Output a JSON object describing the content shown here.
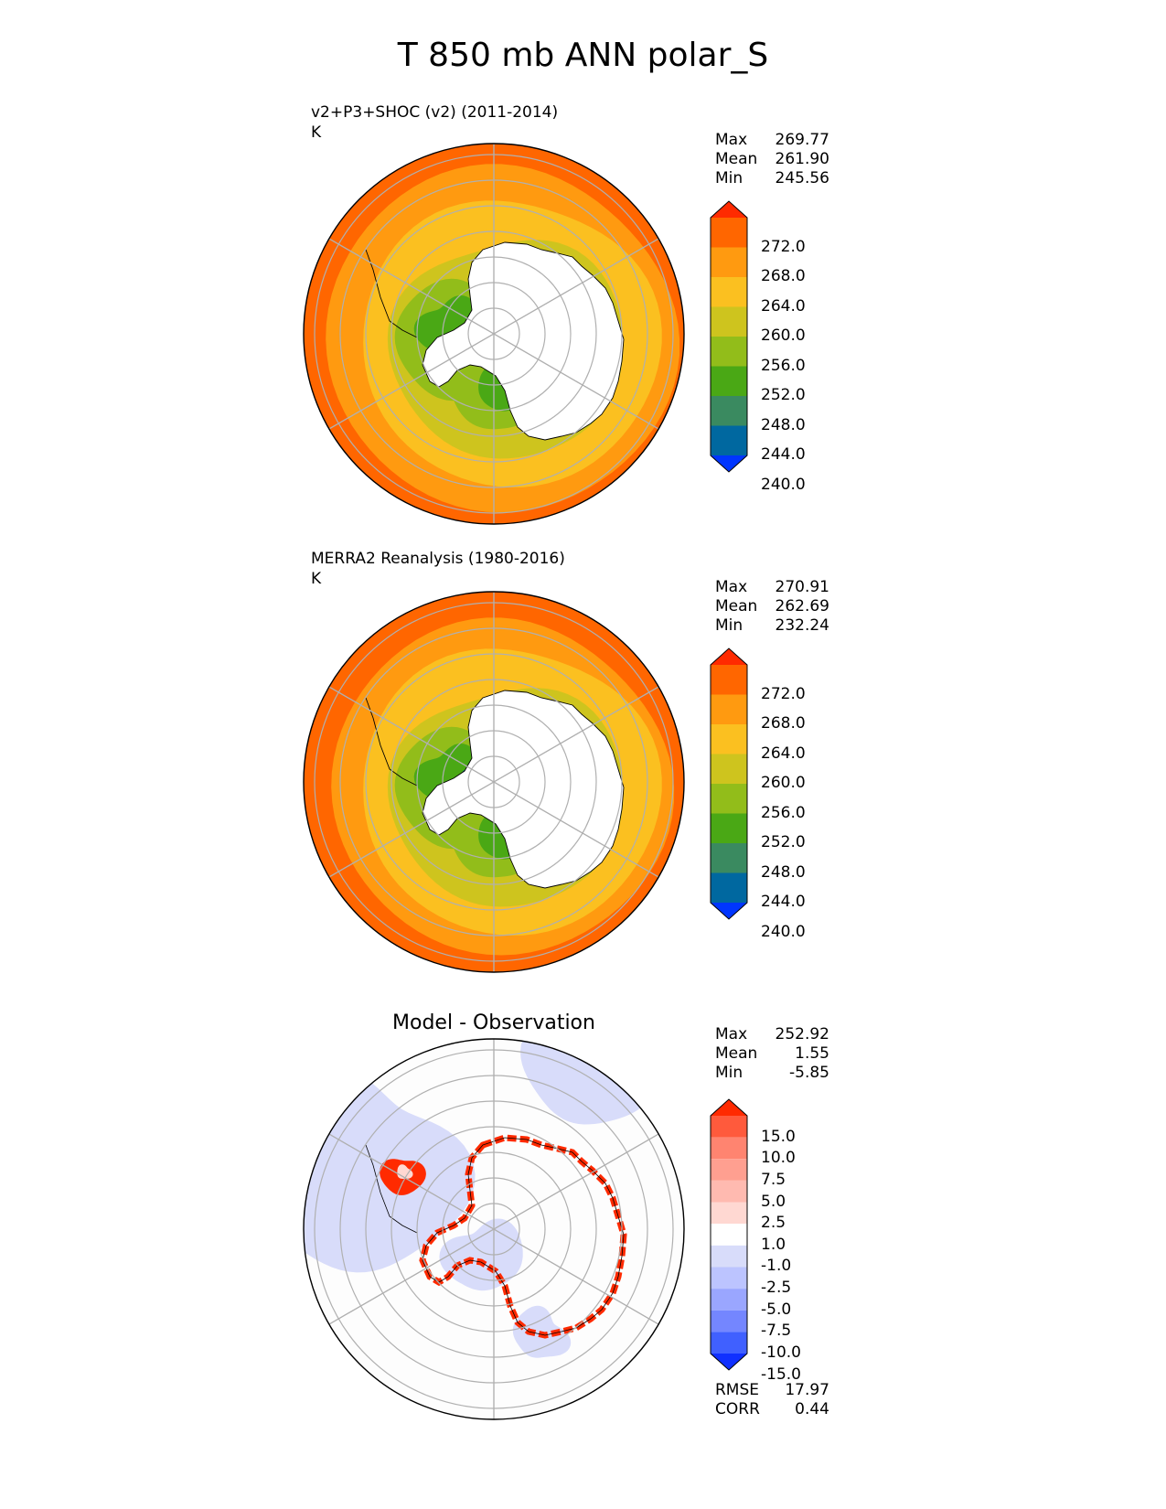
{
  "title": "T 850 mb ANN polar_S",
  "panels": [
    {
      "title_line1": "v2+P3+SHOC (v2) (2011-2014)",
      "units": "K",
      "stats": [
        {
          "label": "Max",
          "value": "269.77"
        },
        {
          "label": "Mean",
          "value": "261.90"
        },
        {
          "label": "Min",
          "value": "245.56"
        }
      ]
    },
    {
      "title_line1": "MERRA2 Reanalysis (1980-2016)",
      "units": "K",
      "stats": [
        {
          "label": "Max",
          "value": "270.91"
        },
        {
          "label": "Mean",
          "value": "262.69"
        },
        {
          "label": "Min",
          "value": "232.24"
        }
      ]
    },
    {
      "center_title": "Model - Observation",
      "stats": [
        {
          "label": "Max",
          "value": "252.92"
        },
        {
          "label": "Mean",
          "value": "1.55"
        },
        {
          "label": "Min",
          "value": "-5.85"
        }
      ],
      "metrics": [
        {
          "label": "RMSE",
          "value": "17.97"
        },
        {
          "label": "CORR",
          "value": "0.44"
        }
      ]
    }
  ],
  "colorbars": {
    "temperature": {
      "labels": [
        "272.0",
        "268.0",
        "264.0",
        "260.0",
        "256.0",
        "252.0",
        "248.0",
        "244.0",
        "240.0"
      ],
      "colors": [
        "#ff2a00",
        "#ff6600",
        "#ff9a10",
        "#fbc020",
        "#cec41e",
        "#92bd1a",
        "#4aa815",
        "#3a8a60",
        "#0068a0",
        "#0035ff"
      ]
    },
    "difference": {
      "labels": [
        "15.0",
        "10.0",
        "7.5",
        "5.0",
        "2.5",
        "1.0",
        "-1.0",
        "-2.5",
        "-5.0",
        "-7.5",
        "-10.0",
        "-15.0"
      ],
      "colors": [
        "#ff2a00",
        "#ff5a3c",
        "#ff8470",
        "#ff9f90",
        "#ffbab0",
        "#ffd8d2",
        "#ffffff",
        "#d8dcfa",
        "#bcc4ff",
        "#9aa6ff",
        "#7486ff",
        "#4060ff",
        "#1030ff"
      ]
    }
  },
  "chart_data": [
    {
      "type": "heatmap",
      "title": "v2+P3+SHOC (v2) (2011-2014)",
      "units": "K",
      "projection": "south polar stereographic",
      "stats": {
        "max": 269.77,
        "mean": 261.9,
        "min": 245.56
      },
      "levels": [
        240.0,
        244.0,
        248.0,
        252.0,
        256.0,
        260.0,
        264.0,
        268.0,
        272.0
      ]
    },
    {
      "type": "heatmap",
      "title": "MERRA2 Reanalysis (1980-2016)",
      "units": "K",
      "projection": "south polar stereographic",
      "stats": {
        "max": 270.91,
        "mean": 262.69,
        "min": 232.24
      },
      "levels": [
        240.0,
        244.0,
        248.0,
        252.0,
        256.0,
        260.0,
        264.0,
        268.0,
        272.0
      ]
    },
    {
      "type": "heatmap",
      "title": "Model - Observation",
      "projection": "south polar stereographic",
      "stats": {
        "max": 252.92,
        "mean": 1.55,
        "min": -5.85,
        "rmse": 17.97,
        "corr": 0.44
      },
      "levels": [
        -15.0,
        -10.0,
        -7.5,
        -5.0,
        -2.5,
        -1.0,
        1.0,
        2.5,
        5.0,
        7.5,
        10.0,
        15.0
      ]
    }
  ]
}
